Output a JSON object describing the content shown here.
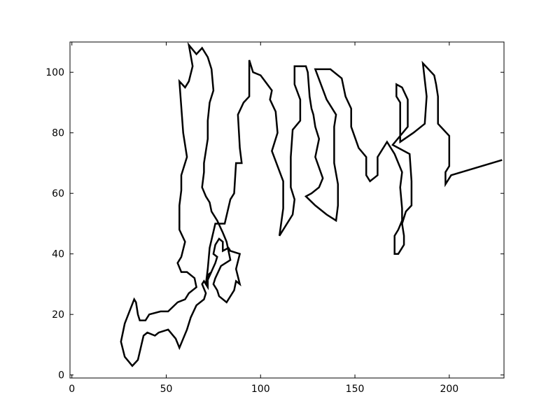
{
  "chart_data": {
    "type": "line",
    "title": "",
    "xlabel": "",
    "ylabel": "",
    "xlim": [
      -1,
      229
    ],
    "ylim": [
      -1,
      110
    ],
    "xticks": [
      0,
      50,
      100,
      150,
      200
    ],
    "yticks": [
      0,
      20,
      40,
      60,
      80,
      100
    ],
    "grid": false,
    "line_color": "#000000",
    "series": [
      {
        "points": [
          [
            228,
            71
          ],
          [
            201,
            66
          ],
          [
            198,
            63
          ],
          [
            198,
            67
          ],
          [
            200,
            69
          ],
          [
            200,
            79
          ],
          [
            194,
            83
          ],
          [
            194,
            92
          ],
          [
            193,
            96
          ],
          [
            192,
            99
          ],
          [
            186,
            103
          ],
          [
            188,
            92
          ],
          [
            187,
            83
          ],
          [
            181,
            80
          ],
          [
            174,
            77
          ],
          [
            174,
            90
          ],
          [
            172,
            92
          ],
          [
            172,
            96
          ],
          [
            175,
            95
          ],
          [
            178,
            91
          ],
          [
            178,
            82
          ],
          [
            170,
            76
          ],
          [
            179,
            73
          ],
          [
            180,
            64
          ],
          [
            180,
            56
          ],
          [
            177,
            54
          ],
          [
            175,
            50
          ],
          [
            176,
            46
          ],
          [
            176,
            43
          ],
          [
            173,
            40
          ],
          [
            171,
            40
          ],
          [
            171,
            46
          ],
          [
            173,
            48
          ],
          [
            175,
            51
          ],
          [
            175,
            55
          ],
          [
            174,
            62
          ],
          [
            175,
            67
          ],
          [
            171,
            73
          ],
          [
            167,
            77
          ],
          [
            162,
            72
          ],
          [
            162,
            66
          ],
          [
            158,
            64
          ],
          [
            156,
            66
          ],
          [
            156,
            72
          ],
          [
            152,
            75
          ],
          [
            148,
            82
          ],
          [
            148,
            88
          ],
          [
            145,
            92
          ],
          [
            144,
            95
          ],
          [
            143,
            98
          ],
          [
            137,
            101
          ],
          [
            129,
            101
          ],
          [
            135,
            91
          ],
          [
            140,
            86
          ],
          [
            139,
            82
          ],
          [
            139,
            70
          ],
          [
            141,
            63
          ],
          [
            141,
            56
          ],
          [
            140,
            51
          ],
          [
            135,
            53
          ],
          [
            129,
            56
          ],
          [
            124,
            59
          ],
          [
            127,
            60
          ],
          [
            131,
            62
          ],
          [
            133,
            65
          ],
          [
            129,
            72
          ],
          [
            131,
            78
          ],
          [
            129,
            82
          ],
          [
            128,
            86
          ],
          [
            127,
            88
          ],
          [
            126,
            92
          ],
          [
            125,
            100
          ],
          [
            124,
            102
          ],
          [
            118,
            102
          ],
          [
            118,
            96
          ],
          [
            121,
            91
          ],
          [
            121,
            84
          ],
          [
            117,
            81
          ],
          [
            116,
            72
          ],
          [
            116,
            62
          ],
          [
            118,
            58
          ],
          [
            117,
            53
          ],
          [
            110,
            46
          ],
          [
            112,
            55
          ],
          [
            112,
            64
          ],
          [
            109,
            69
          ],
          [
            106,
            74
          ],
          [
            109,
            80
          ],
          [
            108,
            87
          ],
          [
            105,
            91
          ],
          [
            106,
            94
          ],
          [
            100,
            99
          ],
          [
            96,
            100
          ],
          [
            94,
            104
          ],
          [
            94,
            92
          ],
          [
            91,
            90
          ],
          [
            88,
            86
          ],
          [
            89,
            75
          ],
          [
            90,
            70
          ],
          [
            87,
            70
          ],
          [
            86,
            60
          ],
          [
            84,
            58
          ],
          [
            81,
            50
          ],
          [
            76,
            50
          ],
          [
            73,
            42
          ],
          [
            72,
            35
          ],
          [
            71,
            30
          ],
          [
            76,
            37
          ],
          [
            77,
            39
          ],
          [
            75,
            40
          ],
          [
            76,
            43
          ],
          [
            78,
            45
          ],
          [
            80,
            44
          ],
          [
            80,
            41
          ],
          [
            83,
            42
          ],
          [
            84,
            41
          ],
          [
            89,
            40
          ],
          [
            87,
            35
          ],
          [
            89,
            30
          ],
          [
            87,
            31
          ],
          [
            86,
            28
          ],
          [
            82,
            24
          ],
          [
            78,
            26
          ],
          [
            77,
            28
          ],
          [
            75,
            30
          ],
          [
            76,
            32
          ],
          [
            79,
            36
          ],
          [
            84,
            38
          ],
          [
            82,
            44
          ],
          [
            80,
            47
          ],
          [
            77,
            51
          ],
          [
            74,
            54
          ],
          [
            73,
            57
          ],
          [
            71,
            59
          ],
          [
            69,
            62
          ],
          [
            70,
            67
          ],
          [
            70,
            70
          ],
          [
            71,
            74
          ],
          [
            72,
            78
          ],
          [
            72,
            84
          ],
          [
            73,
            90
          ],
          [
            75,
            94
          ],
          [
            74,
            101
          ],
          [
            72,
            105
          ],
          [
            69,
            108
          ],
          [
            66,
            106
          ],
          [
            62,
            109
          ],
          [
            64,
            102
          ],
          [
            62,
            97
          ],
          [
            60,
            95
          ],
          [
            57,
            97
          ],
          [
            59,
            80
          ],
          [
            61,
            72
          ],
          [
            58,
            66
          ],
          [
            58,
            61
          ],
          [
            57,
            56
          ],
          [
            57,
            48
          ],
          [
            60,
            44
          ],
          [
            58,
            39
          ],
          [
            56,
            37
          ],
          [
            58,
            34
          ],
          [
            61,
            34
          ],
          [
            65,
            32
          ],
          [
            66,
            29
          ],
          [
            62,
            27
          ],
          [
            60,
            25
          ],
          [
            56,
            24
          ],
          [
            51,
            21
          ],
          [
            47,
            21
          ],
          [
            41,
            20
          ],
          [
            39,
            18
          ],
          [
            36,
            18
          ],
          [
            35,
            20
          ],
          [
            34,
            24
          ],
          [
            33,
            25
          ],
          [
            28,
            17
          ],
          [
            26,
            11
          ],
          [
            28,
            6
          ],
          [
            32,
            3
          ],
          [
            35,
            5
          ],
          [
            38,
            13
          ],
          [
            40,
            14
          ],
          [
            44,
            13
          ],
          [
            46,
            14
          ],
          [
            51,
            15
          ],
          [
            55,
            12
          ],
          [
            57,
            9
          ],
          [
            59,
            12
          ],
          [
            61,
            15
          ],
          [
            63,
            19
          ],
          [
            66,
            23
          ],
          [
            70,
            25
          ],
          [
            71,
            27
          ],
          [
            69,
            30
          ],
          [
            70,
            31
          ],
          [
            72,
            29
          ],
          [
            72,
            33
          ],
          [
            74,
            34
          ]
        ]
      }
    ]
  }
}
